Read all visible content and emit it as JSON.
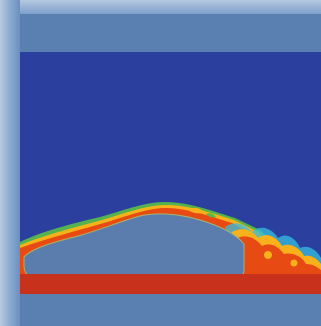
{
  "scene": {
    "subject": "car-body-flow-simulation",
    "colors": {
      "frame": "#5f84b4",
      "bezel": "#9fb7d8",
      "fluid_background": "#2b3f9f",
      "body_fill": "#5a7dad",
      "ground": "#c8321c",
      "turbulence_hot": "#e84a14",
      "turbulence_warm": "#f7b21b",
      "turbulence_green": "#57b949",
      "turbulence_cyan": "#37bfe0"
    }
  }
}
